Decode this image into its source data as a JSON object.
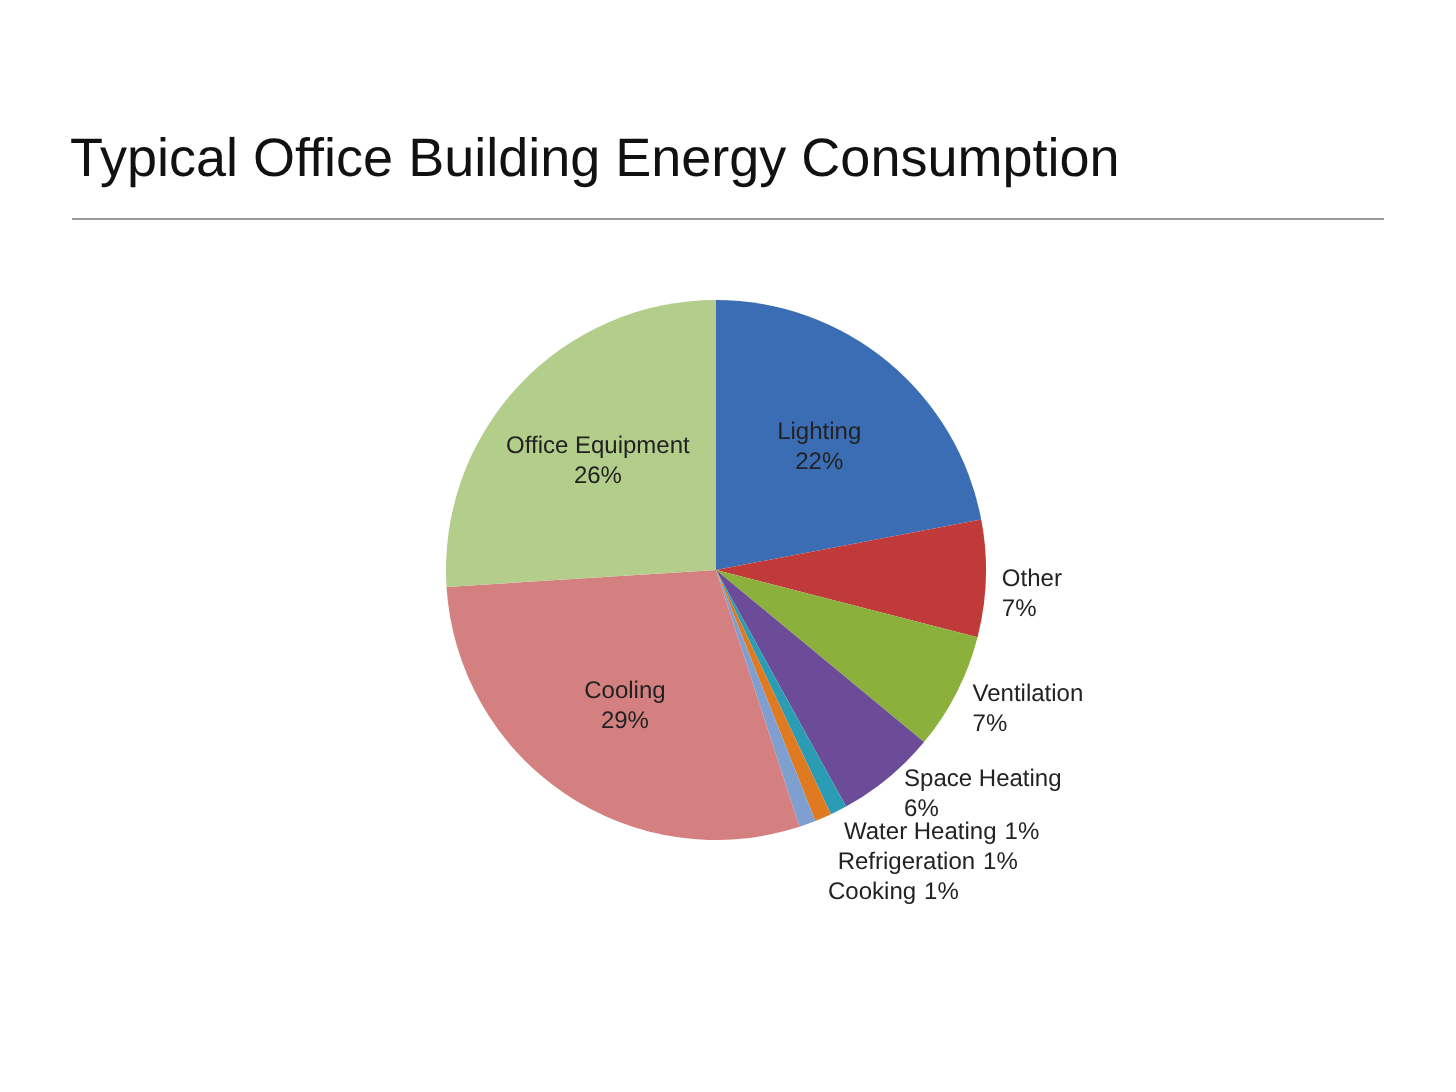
{
  "chart_data": {
    "type": "pie",
    "title": "Typical Office Building Energy Consumption",
    "categories": [
      "Lighting",
      "Other",
      "Ventilation",
      "Space Heating",
      "Water Heating",
      "Refrigeration",
      "Cooking",
      "Cooling",
      "Office Equipment"
    ],
    "values": [
      22,
      7,
      7,
      6,
      1,
      1,
      1,
      29,
      26
    ],
    "colors": [
      "#3a6db3",
      "#c03a3a",
      "#8bb13c",
      "#6c4b98",
      "#2a9db5",
      "#e07a20",
      "#7f9fd0",
      "#d58080",
      "#b3cd8a"
    ],
    "value_labels": [
      "22%",
      "7%",
      "7%",
      "6%",
      "1%",
      "1%",
      "1%",
      "29%",
      "26%"
    ]
  }
}
